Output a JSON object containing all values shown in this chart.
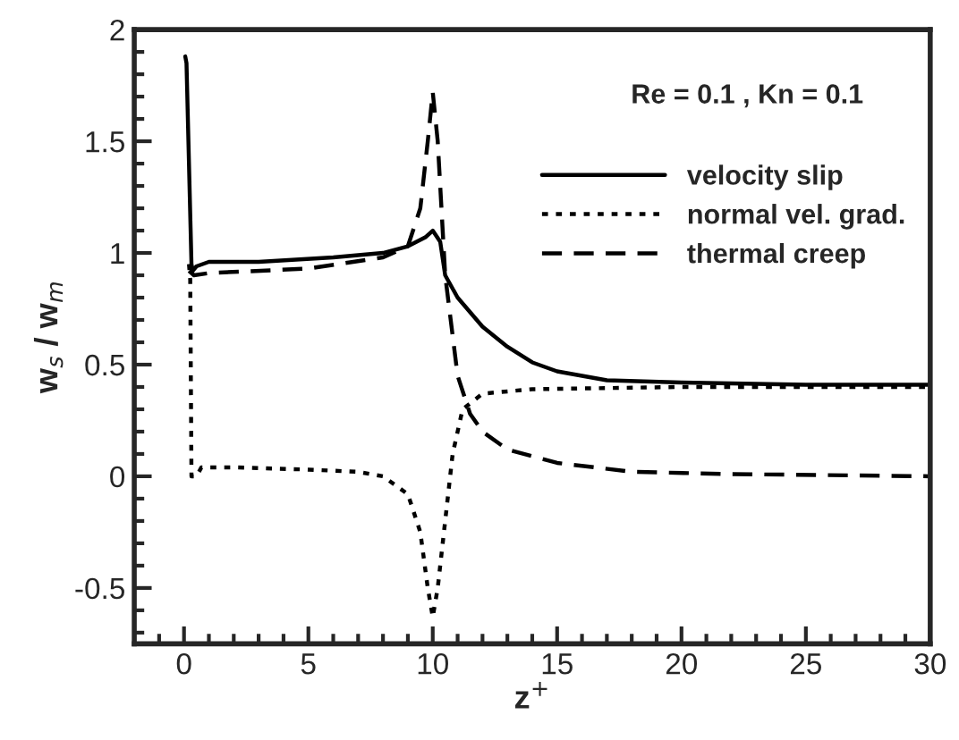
{
  "chart_data": {
    "type": "line",
    "xlabel": "z$^{+}$",
    "ylabel": "w$_{s}$ / w$_{m}$",
    "annotations": [
      "Re = 0.1 , Kn = 0.1"
    ],
    "xlim": [
      -2,
      30
    ],
    "ylim": [
      -0.75,
      2
    ],
    "xticks": [
      0,
      5,
      10,
      15,
      20,
      25,
      30
    ],
    "yticks": [
      -0.5,
      0,
      0.5,
      1,
      1.5,
      2
    ],
    "grid": false,
    "legend": "top right",
    "series": [
      {
        "name": "velocity slip",
        "color": "#000000",
        "line_style": "solid",
        "x": [
          0.05,
          0.1,
          0.3,
          0.35,
          0.5,
          1,
          3,
          6,
          8,
          9,
          9.7,
          10,
          10.3,
          10.5,
          11,
          12,
          13,
          14,
          15,
          17,
          20,
          25,
          30
        ],
        "values": [
          1.88,
          1.85,
          0.95,
          0.92,
          0.94,
          0.96,
          0.96,
          0.98,
          1.0,
          1.03,
          1.07,
          1.1,
          1.05,
          0.9,
          0.8,
          0.67,
          0.58,
          0.51,
          0.47,
          0.43,
          0.42,
          0.41,
          0.41
        ]
      },
      {
        "name": "normal vel. grad.",
        "color": "#000000",
        "line_style": "dotted",
        "x": [
          0.2,
          0.25,
          0.3,
          0.5,
          0.7,
          2,
          5,
          7,
          8,
          9,
          9.5,
          9.8,
          10,
          10.2,
          10.5,
          10.8,
          11.2,
          12,
          14,
          20,
          30
        ],
        "values": [
          0.95,
          0.88,
          0.0,
          0.0,
          0.04,
          0.04,
          0.03,
          0.02,
          0.0,
          -0.08,
          -0.25,
          -0.5,
          -0.63,
          -0.5,
          -0.2,
          0.1,
          0.3,
          0.37,
          0.39,
          0.4,
          0.4
        ]
      },
      {
        "name": "thermal creep",
        "color": "#000000",
        "line_style": "dashed",
        "x": [
          0.2,
          0.4,
          1,
          5,
          8,
          9,
          9.5,
          9.8,
          10,
          10.2,
          10.5,
          11,
          11.5,
          12,
          13,
          15,
          18,
          22,
          30
        ],
        "values": [
          0.92,
          0.9,
          0.91,
          0.93,
          0.98,
          1.03,
          1.2,
          1.5,
          1.72,
          1.5,
          0.9,
          0.45,
          0.28,
          0.2,
          0.12,
          0.06,
          0.02,
          0.01,
          0.0
        ]
      }
    ]
  }
}
